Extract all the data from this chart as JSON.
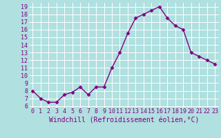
{
  "x": [
    0,
    1,
    2,
    3,
    4,
    5,
    6,
    7,
    8,
    9,
    10,
    11,
    12,
    13,
    14,
    15,
    16,
    17,
    18,
    19,
    20,
    21,
    22,
    23
  ],
  "y": [
    8.0,
    7.0,
    6.5,
    6.5,
    7.5,
    7.8,
    8.5,
    7.5,
    8.5,
    8.5,
    11.0,
    13.0,
    15.5,
    17.5,
    18.0,
    18.5,
    19.0,
    17.5,
    16.5,
    16.0,
    13.0,
    12.5,
    12.0,
    11.5
  ],
  "color": "#800080",
  "bg_color": "#b0e0e0",
  "grid_color": "#ffffff",
  "xlabel": "Windchill (Refroidissement éolien,°C)",
  "ylim": [
    5.8,
    19.5
  ],
  "xlim": [
    -0.5,
    23.5
  ],
  "yticks": [
    6,
    7,
    8,
    9,
    10,
    11,
    12,
    13,
    14,
    15,
    16,
    17,
    18,
    19
  ],
  "xticks": [
    0,
    1,
    2,
    3,
    4,
    5,
    6,
    7,
    8,
    9,
    10,
    11,
    12,
    13,
    14,
    15,
    16,
    17,
    18,
    19,
    20,
    21,
    22,
    23
  ],
  "xlabel_fontsize": 7,
  "tick_fontsize": 6,
  "line_width": 1.0,
  "marker_size": 2.5
}
